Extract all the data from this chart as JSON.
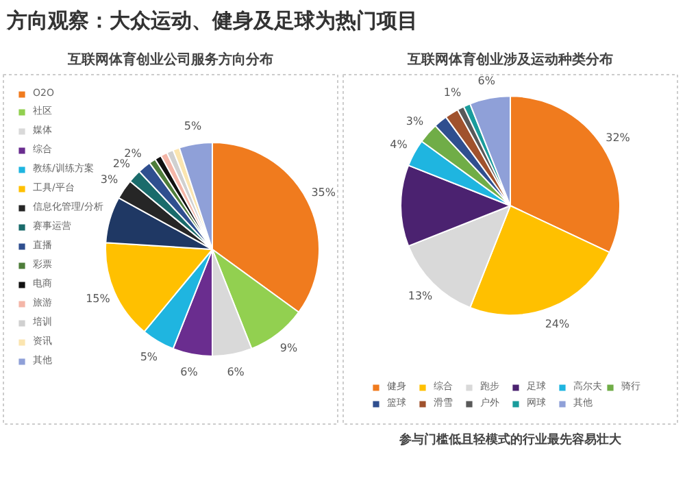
{
  "chart_data": [
    {
      "type": "pie",
      "title": "互联网体育创业公司服务方向分布",
      "annotations": [
        "方向观察：大众运动、健身及足球为热门项目"
      ],
      "legend": "left",
      "categories": [
        "O2O",
        "社区",
        "媒体",
        "综合",
        "教练/训练方案",
        "工具/平台",
        null,
        "信息化管理/分析",
        "赛事运营",
        "直播",
        "彩票",
        "电商",
        "旅游",
        "培训",
        "资讯",
        "其他"
      ],
      "values": [
        35,
        9,
        6,
        6,
        5,
        15,
        7,
        3,
        2,
        2,
        1,
        1,
        1,
        1,
        1,
        5
      ],
      "colors": [
        "#f07b1e",
        "#92d050",
        "#d9d9d9",
        "#6a2d8f",
        "#1fb5e0",
        "#ffc000",
        "#1f3864",
        "#262626",
        "#1a6b6b",
        "#2f4f8f",
        "#4e7d3a",
        "#111111",
        "#f4b6a8",
        "#d0d0d0",
        "#fbe5b0",
        "#8fa0d8"
      ],
      "value_labels": [
        "35%",
        "9%",
        "6%",
        "6%",
        "5%",
        "15%",
        null,
        "3%",
        "2%",
        "2%",
        null,
        null,
        null,
        null,
        null,
        "5%"
      ]
    },
    {
      "type": "pie",
      "title": "互联网体育创业涉及运动种类分布",
      "annotations": [
        "参与门槛低且轻模式的行业最先容易壮大"
      ],
      "legend": "bottom",
      "categories": [
        "健身",
        "综合",
        "跑步",
        "足球",
        "高尔夫",
        "骑行",
        "篮球",
        "滑雪",
        "户外",
        "网球",
        "其他"
      ],
      "values": [
        32,
        24,
        13,
        12,
        4,
        3,
        2,
        2,
        1,
        1,
        6
      ],
      "colors": [
        "#f07b1e",
        "#ffc000",
        "#d9d9d9",
        "#4b2270",
        "#1fb5e0",
        "#70ad47",
        "#2f4f8f",
        "#a0522d",
        "#595959",
        "#1a9c9c",
        "#8fa0d8"
      ],
      "value_labels": [
        "32%",
        "24%",
        "13%",
        null,
        "4%",
        "3%",
        null,
        null,
        "1%",
        null,
        "6%"
      ]
    }
  ]
}
